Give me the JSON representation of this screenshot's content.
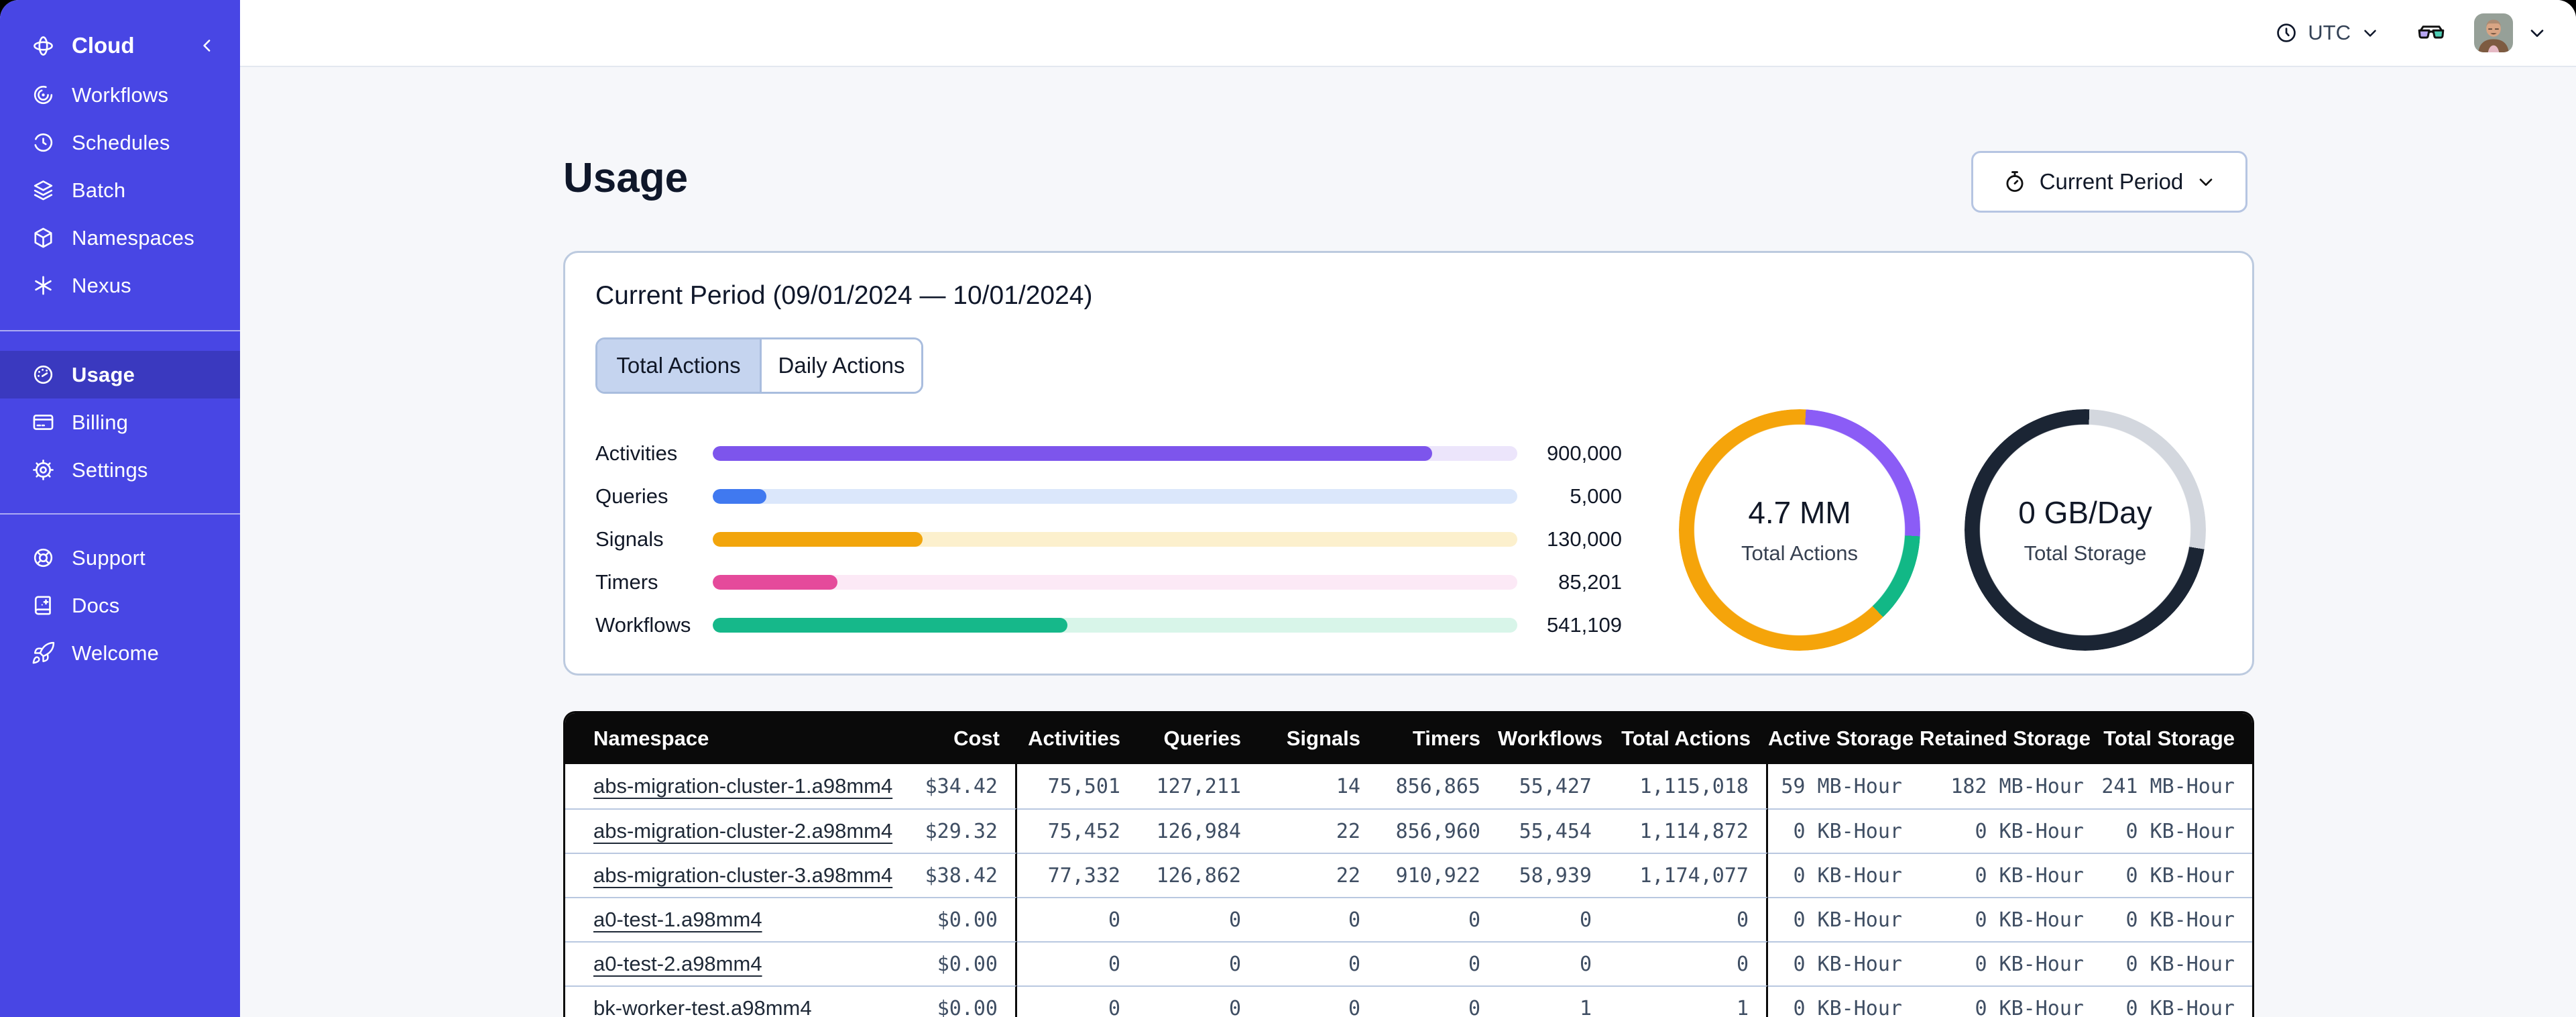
{
  "topbar": {
    "timezone_label": "UTC",
    "icons": [
      "clock-icon",
      "chevron-down-icon",
      "glasses-icon",
      "avatar",
      "chevron-down-icon"
    ]
  },
  "sidebar": {
    "brand": {
      "label": "Cloud",
      "icon": "temporal-logo-icon",
      "collapse_icon": "chevron-left-icon"
    },
    "sections": [
      {
        "items": [
          {
            "label": "Workflows",
            "icon": "workflows-icon"
          },
          {
            "label": "Schedules",
            "icon": "schedules-clock-icon"
          },
          {
            "label": "Batch",
            "icon": "batch-layers-icon"
          },
          {
            "label": "Namespaces",
            "icon": "namespaces-cube-icon"
          },
          {
            "label": "Nexus",
            "icon": "nexus-asterisk-icon"
          }
        ]
      },
      {
        "items": [
          {
            "label": "Usage",
            "icon": "usage-gauge-icon",
            "active": true
          },
          {
            "label": "Billing",
            "icon": "billing-card-icon"
          },
          {
            "label": "Settings",
            "icon": "settings-gear-icon"
          }
        ]
      },
      {
        "items": [
          {
            "label": "Support",
            "icon": "support-lifebuoy-icon"
          },
          {
            "label": "Docs",
            "icon": "docs-book-icon"
          },
          {
            "label": "Welcome",
            "icon": "welcome-rocket-icon"
          }
        ]
      }
    ]
  },
  "page": {
    "title": "Usage",
    "period_button": {
      "label": "Current Period",
      "icon": "stopwatch-icon"
    }
  },
  "usage_card": {
    "title": "Current Period (09/01/2024 — 10/01/2024)",
    "tabs": [
      {
        "label": "Total Actions",
        "active": true
      },
      {
        "label": "Daily Actions",
        "active": false
      }
    ]
  },
  "chart_data": [
    {
      "type": "bar",
      "orientation": "horizontal",
      "categories": [
        "Activities",
        "Queries",
        "Signals",
        "Timers",
        "Workflows"
      ],
      "values": [
        900000,
        5000,
        130000,
        85201,
        541109
      ],
      "display_values": [
        "900,000",
        "5,000",
        "130,000",
        "85,201",
        "541,109"
      ],
      "fill_pct": [
        89.4,
        6.7,
        26.1,
        15.5,
        44.1
      ],
      "series_colors": [
        {
          "fill": "#7d55ec",
          "track": "#ece5fb"
        },
        {
          "fill": "#4079f0",
          "track": "#dbe7fb"
        },
        {
          "fill": "#f2a50c",
          "track": "#fcf0cd"
        },
        {
          "fill": "#e54a9b",
          "track": "#fce9f6"
        },
        {
          "fill": "#16b88a",
          "track": "#d8f5e9"
        }
      ]
    },
    {
      "type": "donut",
      "center_value": "4.7 MM",
      "center_label": "Total Actions",
      "start_deg": 3,
      "segments": [
        {
          "name": "activities",
          "color": "#8b5cf6",
          "pct": 25
        },
        {
          "name": "workflows",
          "color": "#12b886",
          "pct": 12
        },
        {
          "name": "signals",
          "color": "#f5a40a",
          "pct": 63
        }
      ]
    },
    {
      "type": "donut",
      "center_value": "0 GB/Day",
      "center_label": "Total Storage",
      "start_deg": 2,
      "segments": [
        {
          "name": "remaining",
          "color": "#d3d7de",
          "pct": 27
        },
        {
          "name": "used",
          "color": "#1b2534",
          "pct": 73
        }
      ]
    }
  ],
  "table": {
    "columns": [
      "Namespace",
      "Cost",
      "Activities",
      "Queries",
      "Signals",
      "Timers",
      "Workflows",
      "Total Actions",
      "Active Storage",
      "Retained Storage",
      "Total Storage"
    ],
    "rows": [
      {
        "cells": [
          "abs-migration-cluster-1.a98mm4",
          "$34.42",
          "75,501",
          "127,211",
          "14",
          "856,865",
          "55,427",
          "1,115,018",
          "59 MB-Hour",
          "182 MB-Hour",
          "241 MB-Hour"
        ]
      },
      {
        "cells": [
          "abs-migration-cluster-2.a98mm4",
          "$29.32",
          "75,452",
          "126,984",
          "22",
          "856,960",
          "55,454",
          "1,114,872",
          "0 KB-Hour",
          "0 KB-Hour",
          "0 KB-Hour"
        ]
      },
      {
        "cells": [
          "abs-migration-cluster-3.a98mm4",
          "$38.42",
          "77,332",
          "126,862",
          "22",
          "910,922",
          "58,939",
          "1,174,077",
          "0 KB-Hour",
          "0 KB-Hour",
          "0 KB-Hour"
        ]
      },
      {
        "cells": [
          "a0-test-1.a98mm4",
          "$0.00",
          "0",
          "0",
          "0",
          "0",
          "0",
          "0",
          "0 KB-Hour",
          "0 KB-Hour",
          "0 KB-Hour"
        ]
      },
      {
        "cells": [
          "a0-test-2.a98mm4",
          "$0.00",
          "0",
          "0",
          "0",
          "0",
          "0",
          "0",
          "0 KB-Hour",
          "0 KB-Hour",
          "0 KB-Hour"
        ]
      },
      {
        "cells": [
          "bk-worker-test.a98mm4",
          "$0.00",
          "0",
          "0",
          "0",
          "0",
          "1",
          "1",
          "0 KB-Hour",
          "0 KB-Hour",
          "0 KB-Hour"
        ]
      }
    ]
  },
  "colors": {
    "sidebar_bg": "#4846e4",
    "sidebar_active_bg": "#3a39bf",
    "main_bg": "#f6f7fa",
    "card_border": "#bccadf",
    "tab_selected_bg": "#c5d4ef",
    "table_header_bg": "#0a0a0a",
    "table_text": "#3f4e63",
    "row_divider": "#b9c8e0",
    "glasses_left_lens": "#b7a6f2",
    "glasses_right_lens": "#4fceb5"
  }
}
